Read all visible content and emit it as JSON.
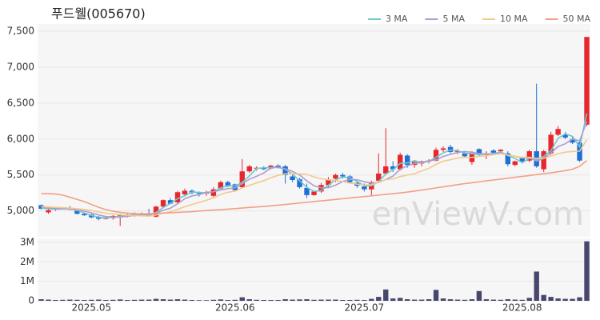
{
  "chart_data": [
    {
      "type": "candlestick",
      "title": "푸드웰(005670)",
      "watermark": "enViewV.com",
      "up_color": "#e8262d",
      "down_color": "#1f6fd6",
      "open": [
        5080,
        4980,
        5020,
        5030,
        5040,
        5000,
        4960,
        4950,
        4910,
        4890,
        4900,
        4930,
        4930,
        4950,
        4960,
        4960,
        4920,
        5060,
        5150,
        5120,
        5230,
        5280,
        5250,
        5240,
        5210,
        5310,
        5400,
        5370,
        5330,
        5550,
        5590,
        5600,
        5590,
        5630,
        5620,
        5480,
        5440,
        5320,
        5220,
        5270,
        5360,
        5450,
        5500,
        5480,
        5390,
        5340,
        5300,
        5420,
        5520,
        5620,
        5580,
        5770,
        5640,
        5660,
        5690,
        5700,
        5850,
        5890,
        5820,
        5800,
        5680,
        5860,
        5780,
        5840,
        5830,
        5800,
        5640,
        5730,
        5700,
        5830,
        5580,
        5800,
        6060,
        6060,
        6000,
        5950,
        6200
      ],
      "high": [
        5090,
        5030,
        5040,
        5050,
        5070,
        5010,
        4980,
        4960,
        4930,
        4930,
        4940,
        4960,
        4960,
        4980,
        4980,
        5030,
        5070,
        5160,
        5180,
        5280,
        5310,
        5300,
        5270,
        5280,
        5330,
        5420,
        5420,
        5380,
        5720,
        5640,
        5620,
        5620,
        5640,
        5650,
        5640,
        5500,
        5460,
        5380,
        5280,
        5390,
        5470,
        5520,
        5530,
        5500,
        5420,
        5380,
        5420,
        5800,
        6150,
        5690,
        5810,
        5790,
        5700,
        5700,
        5720,
        5880,
        5900,
        5920,
        5860,
        5820,
        5830,
        5870,
        5830,
        5860,
        5860,
        5830,
        5700,
        5750,
        5850,
        6770,
        5850,
        6100,
        6180,
        6100,
        6030,
        5980,
        7420
      ],
      "low": [
        5020,
        4960,
        5000,
        5020,
        5010,
        4950,
        4930,
        4900,
        4870,
        4880,
        4880,
        4790,
        4910,
        4920,
        4940,
        4930,
        4910,
        5050,
        5090,
        5100,
        5200,
        5230,
        5200,
        5210,
        5190,
        5300,
        5330,
        5270,
        5320,
        5530,
        5560,
        5570,
        5580,
        5590,
        5380,
        5400,
        5310,
        5180,
        5210,
        5250,
        5320,
        5400,
        5450,
        5380,
        5320,
        5270,
        5220,
        5400,
        5500,
        5540,
        5560,
        5600,
        5600,
        5620,
        5660,
        5690,
        5820,
        5800,
        5790,
        5740,
        5640,
        5760,
        5720,
        5800,
        5820,
        5620,
        5620,
        5660,
        5680,
        5600,
        5540,
        5780,
        6040,
        6000,
        5930,
        5680,
        6180
      ],
      "close": [
        5030,
        5010,
        5030,
        5040,
        5020,
        4960,
        4940,
        4910,
        4890,
        4910,
        4930,
        4940,
        4950,
        4960,
        4950,
        4930,
        5060,
        5150,
        5100,
        5260,
        5280,
        5250,
        5240,
        5260,
        5300,
        5400,
        5350,
        5290,
        5550,
        5620,
        5600,
        5580,
        5630,
        5610,
        5500,
        5430,
        5330,
        5220,
        5270,
        5360,
        5440,
        5500,
        5480,
        5400,
        5350,
        5300,
        5400,
        5520,
        5620,
        5580,
        5780,
        5640,
        5680,
        5690,
        5700,
        5850,
        5870,
        5820,
        5830,
        5760,
        5800,
        5780,
        5800,
        5810,
        5850,
        5650,
        5690,
        5680,
        5830,
        5620,
        5830,
        6060,
        6140,
        6020,
        5950,
        5700,
        7420
      ],
      "series": [
        {
          "name": "3 MA",
          "color": "#6cc9cc",
          "values": [
            5040,
            5030,
            5023,
            5027,
            5030,
            5007,
            4973,
            4937,
            4913,
            4903,
            4910,
            4927,
            4940,
            4950,
            4953,
            4947,
            4980,
            5047,
            5103,
            5170,
            5213,
            5263,
            5257,
            5250,
            5267,
            5320,
            5350,
            5347,
            5397,
            5487,
            5590,
            5600,
            5603,
            5607,
            5580,
            5513,
            5420,
            5327,
            5273,
            5283,
            5357,
            5433,
            5473,
            5460,
            5410,
            5350,
            5350,
            5407,
            5513,
            5573,
            5660,
            5667,
            5700,
            5670,
            5690,
            5747,
            5807,
            5847,
            5840,
            5803,
            5797,
            5780,
            5793,
            5797,
            5820,
            5770,
            5730,
            5673,
            5733,
            5710,
            5760,
            5837,
            6010,
            6073,
            6037,
            5890,
            6357
          ]
        },
        {
          "name": "5 MA",
          "color": "#ad9ccf",
          "values": [
            5050,
            5040,
            5035,
            5030,
            5026,
            5012,
            4998,
            4974,
            4944,
            4922,
            4916,
            4914,
            4926,
            4938,
            4948,
            4946,
            4970,
            5010,
            5038,
            5100,
            5170,
            5208,
            5226,
            5258,
            5266,
            5290,
            5310,
            5320,
            5378,
            5442,
            5482,
            5528,
            5596,
            5608,
            5584,
            5550,
            5500,
            5418,
            5350,
            5322,
            5324,
            5358,
            5410,
            5436,
            5434,
            5406,
            5386,
            5394,
            5438,
            5484,
            5580,
            5628,
            5660,
            5674,
            5698,
            5712,
            5758,
            5786,
            5814,
            5826,
            5816,
            5798,
            5794,
            5790,
            5808,
            5778,
            5760,
            5736,
            5740,
            5694,
            5730,
            5804,
            5896,
            5934,
            6000,
            5974,
            6246
          ]
        },
        {
          "name": "10 MA",
          "color": "#f1c98e",
          "values": [
            5060,
            5055,
            5050,
            5045,
            5040,
            5030,
            5020,
            5005,
            4985,
            4968,
            4958,
            4950,
            4940,
            4935,
            4931,
            4929,
            4942,
            4967,
            4988,
            5023,
            5058,
            5089,
            5118,
            5148,
            5183,
            5230,
            5260,
            5275,
            5320,
            5356,
            5388,
            5421,
            5460,
            5495,
            5515,
            5518,
            5516,
            5509,
            5473,
            5448,
            5432,
            5424,
            5409,
            5388,
            5372,
            5359,
            5366,
            5396,
            5436,
            5444,
            5478,
            5498,
            5518,
            5557,
            5592,
            5647,
            5692,
            5712,
            5737,
            5743,
            5745,
            5758,
            5770,
            5782,
            5797,
            5777,
            5759,
            5745,
            5745,
            5731,
            5734,
            5762,
            5796,
            5817,
            5827,
            5832,
            5990
          ]
        },
        {
          "name": "50 MA",
          "color": "#f29f86",
          "values": [
            5240,
            5240,
            5235,
            5220,
            5190,
            5160,
            5130,
            5090,
            5050,
            5020,
            4995,
            4980,
            4970,
            4962,
            4960,
            4962,
            4966,
            4970,
            4975,
            4980,
            4985,
            4990,
            4998,
            5005,
            5012,
            5018,
            5025,
            5032,
            5040,
            5048,
            5055,
            5062,
            5070,
            5080,
            5090,
            5100,
            5110,
            5120,
            5130,
            5140,
            5150,
            5160,
            5170,
            5180,
            5190,
            5200,
            5210,
            5220,
            5230,
            5240,
            5250,
            5262,
            5275,
            5290,
            5305,
            5320,
            5335,
            5350,
            5365,
            5380,
            5392,
            5405,
            5418,
            5430,
            5442,
            5455,
            5468,
            5480,
            5492,
            5505,
            5518,
            5530,
            5545,
            5560,
            5580,
            5620,
            5700
          ]
        }
      ],
      "ylim": [
        4640,
        7600
      ],
      "yticks": [
        {
          "value": 5000,
          "label": "5,000"
        },
        {
          "value": 5500,
          "label": "5,500"
        },
        {
          "value": 6000,
          "label": "6,000"
        },
        {
          "value": 6500,
          "label": "6,500"
        },
        {
          "value": 7000,
          "label": "7,000"
        },
        {
          "value": 7500,
          "label": "7,500"
        }
      ],
      "grid": true,
      "legend": "upper right"
    },
    {
      "type": "bar",
      "color": "#46476d",
      "categories": [
        null,
        null,
        null,
        null,
        null,
        null,
        null,
        "2025.05",
        null,
        null,
        null,
        null,
        null,
        null,
        null,
        null,
        null,
        null,
        null,
        null,
        null,
        null,
        null,
        null,
        null,
        null,
        null,
        "2025.06",
        null,
        null,
        null,
        null,
        null,
        null,
        null,
        null,
        null,
        null,
        null,
        null,
        null,
        null,
        null,
        null,
        null,
        "2025.07",
        null,
        null,
        null,
        null,
        null,
        null,
        null,
        null,
        null,
        null,
        null,
        null,
        null,
        null,
        null,
        null,
        null,
        null,
        null,
        null,
        null,
        "2025.08",
        null,
        null,
        null,
        null,
        null,
        null,
        null,
        null,
        null
      ],
      "values": [
        80000,
        60000,
        40000,
        50000,
        60000,
        50000,
        40000,
        50000,
        60000,
        40000,
        50000,
        70000,
        40000,
        50000,
        60000,
        60000,
        100000,
        80000,
        60000,
        80000,
        60000,
        40000,
        30000,
        30000,
        50000,
        70000,
        40000,
        50000,
        180000,
        80000,
        50000,
        40000,
        40000,
        40000,
        80000,
        60000,
        70000,
        80000,
        50000,
        60000,
        60000,
        60000,
        40000,
        40000,
        50000,
        40000,
        100000,
        200000,
        580000,
        120000,
        150000,
        80000,
        60000,
        60000,
        80000,
        560000,
        120000,
        80000,
        60000,
        50000,
        80000,
        500000,
        80000,
        60000,
        50000,
        80000,
        60000,
        50000,
        150000,
        1500000,
        300000,
        200000,
        120000,
        100000,
        100000,
        180000,
        3050000
      ],
      "ylim": [
        0,
        3200000
      ],
      "yticks": [
        0,
        {
          "value": 1000000,
          "label": "1M"
        },
        {
          "value": 2000000,
          "label": "2M"
        },
        {
          "value": 3000000,
          "label": "3M"
        }
      ],
      "grid": true
    }
  ]
}
